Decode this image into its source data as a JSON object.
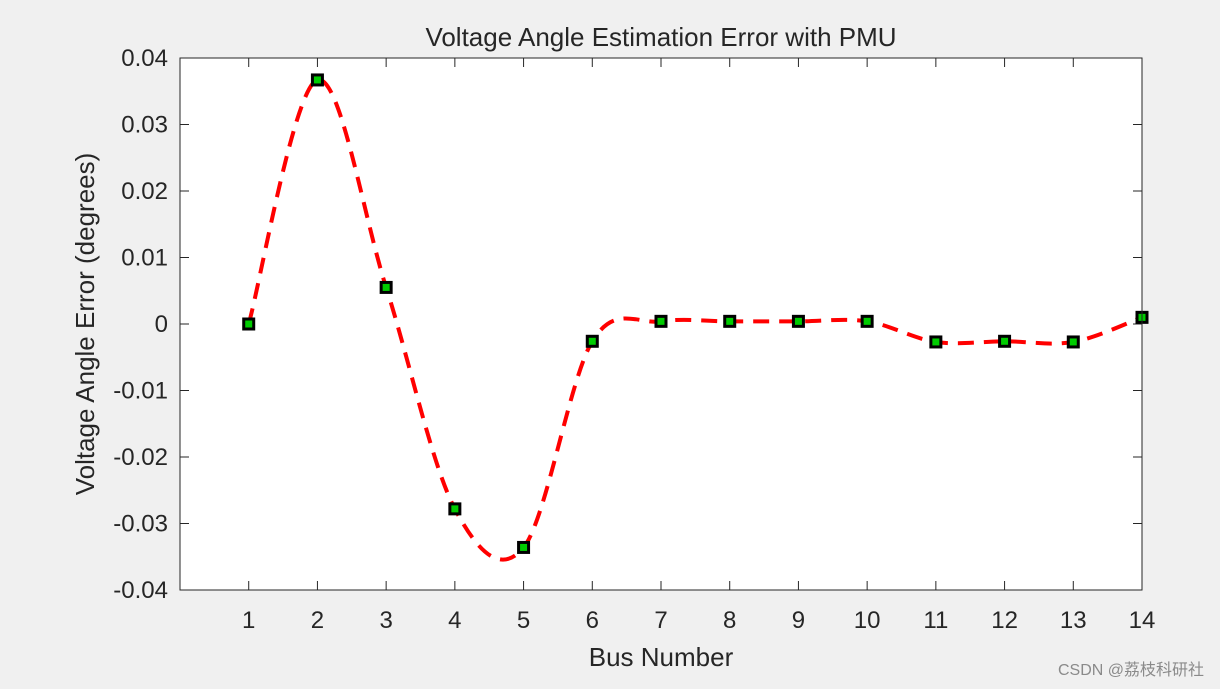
{
  "chart_data": {
    "type": "line",
    "title": "Voltage Angle Estimation Error with PMU",
    "xlabel": "Bus Number",
    "ylabel": "Voltage Angle Error (degrees)",
    "xlim": [
      0,
      14
    ],
    "ylim": [
      -0.04,
      0.04
    ],
    "xticks": [
      1,
      2,
      3,
      4,
      5,
      6,
      7,
      8,
      9,
      10,
      11,
      12,
      13,
      14
    ],
    "yticks": [
      -0.04,
      -0.03,
      -0.02,
      -0.01,
      0,
      0.01,
      0.02,
      0.03,
      0.04
    ],
    "ytick_labels": [
      "-0.04",
      "-0.03",
      "-0.02",
      "-0.01",
      "0",
      "0.01",
      "0.02",
      "0.03",
      "0.04"
    ],
    "grid": false,
    "series": [
      {
        "x": [
          1,
          2,
          3,
          4,
          5,
          6,
          7,
          8,
          9,
          10,
          11,
          12,
          13,
          14
        ],
        "values": [
          0.0,
          0.0367,
          0.0055,
          -0.0278,
          -0.0336,
          -0.0026,
          0.0004,
          0.0004,
          0.0004,
          0.0004,
          -0.0027,
          -0.0026,
          -0.0027,
          0.001
        ],
        "line_color": "#ff0000",
        "line_style": "dashed",
        "marker": "square",
        "marker_face_color": "#00cc00",
        "marker_edge_color": "#000000"
      }
    ]
  },
  "watermark": "CSDN @荔枝科研社"
}
